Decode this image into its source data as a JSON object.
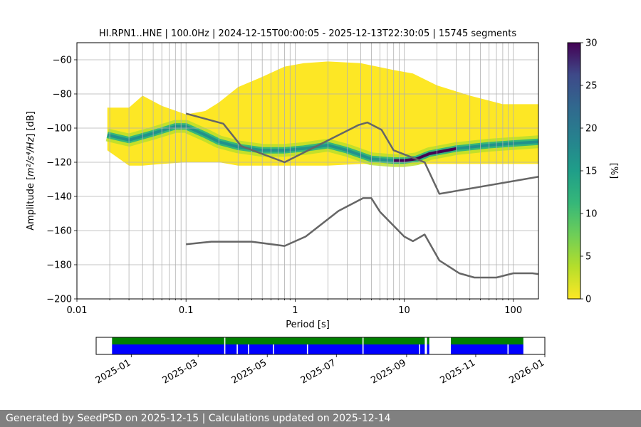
{
  "chart_data": [
    {
      "type": "heatmap",
      "title": "HI.RPN1..HNE | 100.0Hz | 2024-12-15T00:00:05 - 2025-12-13T22:30:05 | 15745 segments",
      "xlabel": "Period [s]",
      "ylabel_prefix": "Amplitude [",
      "ylabel_suffix": "] [dB]",
      "ylabel_math": "m²/s⁴/Hz",
      "x_scale": "log",
      "xlim": [
        0.01,
        170
      ],
      "ylim": [
        -200,
        -50
      ],
      "grid": true,
      "x_ticks": [
        {
          "value": 0.01,
          "label": "0.01"
        },
        {
          "value": 0.1,
          "label": "0.1"
        },
        {
          "value": 1,
          "label": "1"
        },
        {
          "value": 10,
          "label": "10"
        },
        {
          "value": 100,
          "label": "100"
        }
      ],
      "y_ticks": [
        {
          "value": -60,
          "label": "−60"
        },
        {
          "value": -80,
          "label": "−80"
        },
        {
          "value": -100,
          "label": "−100"
        },
        {
          "value": -120,
          "label": "−120"
        },
        {
          "value": -140,
          "label": "−140"
        },
        {
          "value": -160,
          "label": "−160"
        },
        {
          "value": -180,
          "label": "−180"
        },
        {
          "value": -200,
          "label": "−200"
        }
      ],
      "colorbar": {
        "label": "[%]",
        "range": [
          0,
          30
        ],
        "ticks": [
          {
            "value": 0,
            "label": "0"
          },
          {
            "value": 5,
            "label": "5"
          },
          {
            "value": 10,
            "label": "10"
          },
          {
            "value": 15,
            "label": "15"
          },
          {
            "value": 20,
            "label": "20"
          },
          {
            "value": 25,
            "label": "25"
          },
          {
            "value": 30,
            "label": "30"
          }
        ],
        "colormap": "viridis_r"
      },
      "mode_curve": [
        [
          0.019,
          -104
        ],
        [
          0.03,
          -107
        ],
        [
          0.05,
          -103
        ],
        [
          0.08,
          -99
        ],
        [
          0.1,
          -99
        ],
        [
          0.15,
          -104
        ],
        [
          0.2,
          -108
        ],
        [
          0.3,
          -111
        ],
        [
          0.5,
          -113
        ],
        [
          0.8,
          -113
        ],
        [
          1.2,
          -112
        ],
        [
          2,
          -110
        ],
        [
          3,
          -113
        ],
        [
          5,
          -118
        ],
        [
          8,
          -119
        ],
        [
          10,
          -119
        ],
        [
          13,
          -118
        ],
        [
          17,
          -115
        ],
        [
          30,
          -112
        ],
        [
          60,
          -110
        ],
        [
          100,
          -109
        ],
        [
          170,
          -108
        ]
      ],
      "distribution_envelope": [
        {
          "x": 0.019,
          "lo": -113,
          "hi": -88
        },
        {
          "x": 0.03,
          "lo": -122,
          "hi": -88
        },
        {
          "x": 0.04,
          "lo": -122,
          "hi": -81
        },
        {
          "x": 0.06,
          "lo": -121,
          "hi": -87
        },
        {
          "x": 0.1,
          "lo": -120,
          "hi": -92
        },
        {
          "x": 0.15,
          "lo": -120,
          "hi": -90
        },
        {
          "x": 0.2,
          "lo": -120,
          "hi": -85
        },
        {
          "x": 0.3,
          "lo": -122,
          "hi": -76
        },
        {
          "x": 0.5,
          "lo": -122,
          "hi": -70
        },
        {
          "x": 0.8,
          "lo": -122,
          "hi": -64
        },
        {
          "x": 1.2,
          "lo": -122,
          "hi": -62
        },
        {
          "x": 2,
          "lo": -122,
          "hi": -61
        },
        {
          "x": 4,
          "lo": -121,
          "hi": -62
        },
        {
          "x": 8,
          "lo": -121,
          "hi": -66
        },
        {
          "x": 12,
          "lo": -121,
          "hi": -68
        },
        {
          "x": 20,
          "lo": -121,
          "hi": -75
        },
        {
          "x": 40,
          "lo": -121,
          "hi": -81
        },
        {
          "x": 80,
          "lo": -121,
          "hi": -86
        },
        {
          "x": 170,
          "lo": -121,
          "hi": -86
        }
      ],
      "series": [
        {
          "points": [
            [
              0.1,
              -91.5
            ],
            [
              0.22,
              -97.4
            ],
            [
              0.32,
              -110.5
            ],
            [
              0.8,
              -120
            ],
            [
              3.8,
              -98.2
            ],
            [
              4.6,
              -96.7
            ],
            [
              6.2,
              -101
            ],
            [
              8,
              -113
            ],
            [
              15.4,
              -120
            ],
            [
              21,
              -138.5
            ],
            [
              170,
              -128.5
            ]
          ]
        },
        {
          "points": [
            [
              0.1,
              -168
            ],
            [
              0.17,
              -166.5
            ],
            [
              0.4,
              -166.5
            ],
            [
              0.8,
              -169
            ],
            [
              1.25,
              -163.5
            ],
            [
              2.5,
              -148.5
            ],
            [
              4.2,
              -141
            ],
            [
              5,
              -141
            ],
            [
              6,
              -149
            ],
            [
              10,
              -163.5
            ],
            [
              12,
              -166.2
            ],
            [
              15.4,
              -162.3
            ],
            [
              21,
              -177.5
            ],
            [
              32,
              -185
            ],
            [
              44,
              -187.5
            ],
            [
              70,
              -187.5
            ],
            [
              100,
              -185
            ],
            [
              150,
              -185
            ],
            [
              170,
              -185.5
            ]
          ]
        }
      ]
    },
    {
      "type": "timeline",
      "x_ticks": [
        {
          "value": "2025-01-01",
          "label": "2025-01"
        },
        {
          "value": "2025-03-01",
          "label": "2025-03"
        },
        {
          "value": "2025-05-01",
          "label": "2025-05"
        },
        {
          "value": "2025-07-01",
          "label": "2025-07"
        },
        {
          "value": "2025-09-01",
          "label": "2025-09"
        },
        {
          "value": "2025-11-01",
          "label": "2025-11"
        },
        {
          "value": "2026-01-01",
          "label": "2026-01"
        }
      ],
      "xlim": [
        "2024-12-01",
        "2026-01-01"
      ],
      "rows": [
        {
          "color": "#008000",
          "segments": [
            [
              "2024-12-15",
              "2025-03-24"
            ],
            [
              "2025-03-25",
              "2025-07-24"
            ],
            [
              "2025-07-25",
              "2025-09-17"
            ],
            [
              "2025-09-19",
              "2025-09-21"
            ],
            [
              "2025-10-10",
              "2025-12-13"
            ]
          ]
        },
        {
          "color": "#0000ff",
          "segments": [
            [
              "2024-12-15",
              "2025-03-24"
            ],
            [
              "2025-03-25",
              "2025-04-04"
            ],
            [
              "2025-04-05",
              "2025-04-14"
            ],
            [
              "2025-04-15",
              "2025-05-06"
            ],
            [
              "2025-05-07",
              "2025-06-05"
            ],
            [
              "2025-06-06",
              "2025-07-24"
            ],
            [
              "2025-07-25",
              "2025-09-12"
            ],
            [
              "2025-09-13",
              "2025-09-17"
            ],
            [
              "2025-09-19",
              "2025-09-21"
            ],
            [
              "2025-10-10",
              "2025-11-29"
            ],
            [
              "2025-11-30",
              "2025-12-13"
            ]
          ]
        }
      ]
    }
  ],
  "footer": {
    "text": "Generated by SeedPSD on 2025-12-15 | Calculations updated on 2025-12-14"
  }
}
